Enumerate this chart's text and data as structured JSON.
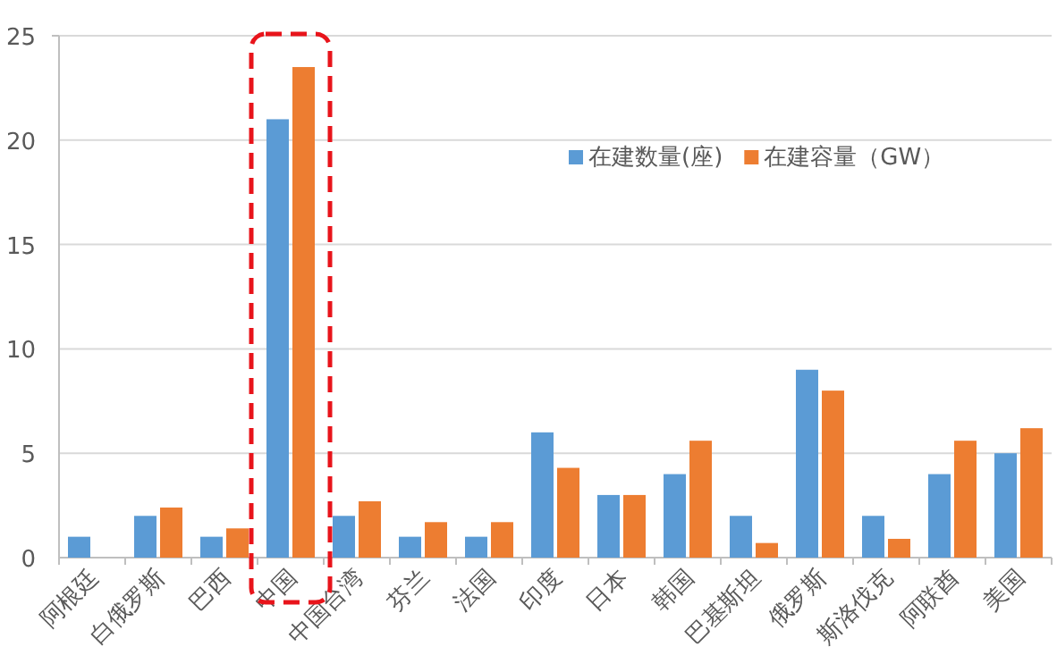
{
  "chart_data": {
    "type": "bar",
    "categories": [
      "阿根廷",
      "白俄罗斯",
      "巴西",
      "中国",
      "中国台湾",
      "芬兰",
      "法国",
      "印度",
      "日本",
      "韩国",
      "巴基斯坦",
      "俄罗斯",
      "斯洛伐克",
      "阿联酋",
      "美国"
    ],
    "series": [
      {
        "name": "在建数量(座)",
        "color": "#5b9bd5",
        "values": [
          1,
          2,
          1,
          21,
          2,
          1,
          1,
          6,
          3,
          4,
          2,
          9,
          2,
          4,
          5
        ]
      },
      {
        "name": "在建容量（GW）",
        "color": "#ed7d31",
        "values": [
          null,
          2.4,
          1.4,
          23.5,
          2.7,
          1.7,
          1.7,
          4.3,
          3.0,
          5.6,
          0.7,
          8.0,
          0.9,
          5.6,
          6.2
        ]
      }
    ],
    "ylim": [
      0,
      25
    ],
    "yticks": [
      0,
      5,
      10,
      15,
      20,
      25
    ],
    "grid": "y",
    "legend": "top right"
  }
}
